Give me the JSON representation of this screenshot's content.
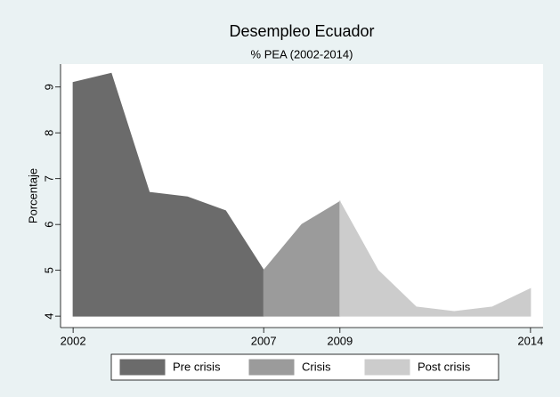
{
  "chart_data": {
    "type": "area",
    "title": "Desempleo Ecuador",
    "subtitle": "% PEA (2002-2014)",
    "y_label": "Porcentaje",
    "series": [
      {
        "name": "Pre crisis",
        "color": "#6b6b6b",
        "x": [
          2002,
          2003,
          2004,
          2005,
          2006,
          2007
        ],
        "values": [
          9.1,
          9.3,
          6.7,
          6.6,
          6.3,
          5.0
        ]
      },
      {
        "name": "Crisis",
        "color": "#9b9b9b",
        "x": [
          2007,
          2008,
          2009
        ],
        "values": [
          5.0,
          6.0,
          6.5
        ]
      },
      {
        "name": "Post crisis",
        "color": "#cccccc",
        "x": [
          2009,
          2010,
          2011,
          2012,
          2013,
          2014
        ],
        "values": [
          6.5,
          5.0,
          4.2,
          4.1,
          4.2,
          4.6
        ]
      }
    ],
    "xlim": [
      2001.67,
      2014.33
    ],
    "xticks": [
      2002,
      2007,
      2009,
      2014
    ],
    "ylim": [
      3.75,
      9.5
    ],
    "yticks": [
      4,
      5,
      6,
      7,
      8,
      9
    ],
    "legend": "bottom"
  }
}
